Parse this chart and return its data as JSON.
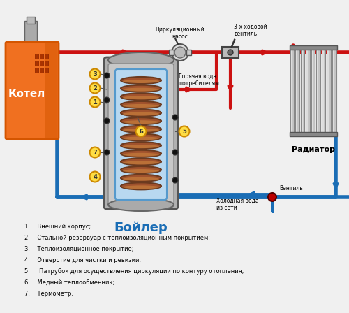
{
  "bg_color": "#f0f0f0",
  "red": "#cc1111",
  "blue": "#1a6db5",
  "orange_dark": "#d45500",
  "orange_light": "#f07020",
  "gray_dark": "#666666",
  "gray_med": "#999999",
  "gray_light": "#cccccc",
  "copper": "#a0522d",
  "copper_light": "#cd853f",
  "light_blue": "#b8d8f0",
  "white": "#ffffff",
  "title": "Бойлер",
  "label_kotel": "Котел",
  "label_radiator": "Радиатор",
  "label_pump": "Циркуляционный\nнасос",
  "label_valve3": "3-х ходовой\nвентиль",
  "label_hot_water": "Горячая вода\nпотребителям",
  "label_cold_water": "Холодная вода\nиз сети",
  "label_ventil": "Вентиль",
  "legend_items": [
    "1.    Внешний корпус;",
    "2.    Стальной резервуар с теплоизоляционным покрытием;",
    "3.    Теплоизоляционное покрытие;",
    "4.    Отверстие для чистки и ревизии;",
    "5.     Патрубок для осуществления циркуляции по контуру отопления;",
    "6.    Медный теплообменник;",
    "7.    Термометр."
  ]
}
